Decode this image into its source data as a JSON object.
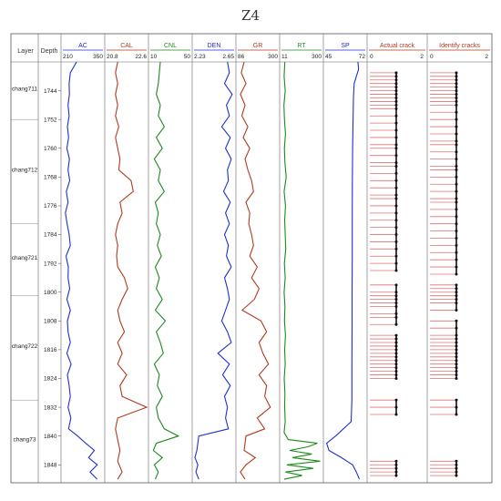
{
  "chart_data": {
    "type": "line",
    "title": "Z4",
    "columns": {
      "layer": "Layer",
      "depth": "Depth"
    },
    "depth_range": [
      1736,
      1853
    ],
    "depth_ticks": [
      1744,
      1752,
      1760,
      1768,
      1776,
      1784,
      1792,
      1800,
      1808,
      1816,
      1824,
      1832,
      1840,
      1848
    ],
    "layers": [
      {
        "name": "chang711",
        "top": 1736,
        "bottom": 1752
      },
      {
        "name": "chang712",
        "top": 1752,
        "bottom": 1781
      },
      {
        "name": "chang721",
        "top": 1781,
        "bottom": 1801
      },
      {
        "name": "chang722",
        "top": 1801,
        "bottom": 1830
      },
      {
        "name": "chang73",
        "top": 1830,
        "bottom": 1853
      }
    ],
    "tracks": [
      {
        "name": "AC",
        "min": "210",
        "max": "350",
        "color": "#1f2fcf",
        "depths": [
          1736,
          1739,
          1742,
          1745,
          1748,
          1751,
          1754,
          1757,
          1760,
          1763,
          1766,
          1769,
          1772,
          1775,
          1778,
          1781,
          1784,
          1787,
          1790,
          1793,
          1796,
          1799,
          1802,
          1805,
          1808,
          1811,
          1814,
          1817,
          1820,
          1823,
          1826,
          1829,
          1832,
          1835,
          1838,
          1840,
          1842,
          1844,
          1846,
          1848,
          1850,
          1852
        ],
        "values": [
          258,
          236,
          232,
          233,
          228,
          232,
          226,
          230,
          224,
          233,
          228,
          234,
          222,
          228,
          219,
          225,
          232,
          236,
          221,
          229,
          228,
          234,
          224,
          236,
          226,
          228,
          236,
          224,
          239,
          226,
          232,
          236,
          228,
          238,
          230,
          262,
          290,
          320,
          300,
          330,
          305,
          330
        ]
      },
      {
        "name": "CAL",
        "min": "20.8",
        "max": "22.6",
        "color": "#b03a1e",
        "depths": [
          1736,
          1739,
          1742,
          1745,
          1748,
          1751,
          1754,
          1757,
          1760,
          1763,
          1766,
          1769,
          1772,
          1775,
          1778,
          1781,
          1784,
          1787,
          1790,
          1793,
          1796,
          1799,
          1802,
          1805,
          1808,
          1811,
          1814,
          1817,
          1820,
          1823,
          1826,
          1829,
          1832,
          1835,
          1838,
          1841,
          1844,
          1847,
          1850,
          1852
        ],
        "values": [
          21.3,
          21.2,
          21.3,
          21.2,
          21.3,
          21.2,
          21.35,
          21.2,
          21.3,
          21.4,
          21.35,
          21.9,
          22.0,
          21.4,
          21.5,
          21.3,
          21.2,
          21.3,
          21.25,
          21.3,
          21.6,
          21.75,
          21.5,
          21.3,
          21.4,
          21.6,
          21.3,
          21.5,
          21.3,
          21.7,
          21.4,
          21.5,
          22.6,
          21.3,
          21.2,
          21.3,
          21.4,
          21.3,
          21.5,
          21.3
        ]
      },
      {
        "name": "CNL",
        "min": "10",
        "max": "50",
        "color": "#1d8a1d",
        "depths": [
          1736,
          1739,
          1742,
          1745,
          1748,
          1751,
          1754,
          1757,
          1760,
          1763,
          1766,
          1769,
          1772,
          1775,
          1778,
          1781,
          1784,
          1787,
          1790,
          1793,
          1796,
          1799,
          1802,
          1805,
          1808,
          1811,
          1814,
          1817,
          1820,
          1823,
          1826,
          1829,
          1832,
          1835,
          1838,
          1840,
          1842,
          1844,
          1846,
          1848,
          1850,
          1852
        ],
        "values": [
          20,
          19,
          18,
          16,
          20,
          18,
          24,
          16,
          22,
          14,
          20,
          18,
          24,
          15,
          18,
          16,
          20,
          17,
          21,
          15,
          19,
          16,
          22,
          15,
          25,
          16,
          20,
          23,
          14,
          19,
          17,
          22,
          16,
          18,
          24,
          38,
          16,
          13,
          22,
          14,
          18,
          15
        ]
      },
      {
        "name": "DEN",
        "min": "2.23",
        "max": "2.65",
        "color": "#1f2fcf",
        "depths": [
          1736,
          1739,
          1742,
          1745,
          1748,
          1751,
          1754,
          1757,
          1760,
          1763,
          1766,
          1769,
          1772,
          1775,
          1778,
          1781,
          1784,
          1787,
          1790,
          1793,
          1796,
          1799,
          1802,
          1805,
          1808,
          1811,
          1814,
          1817,
          1820,
          1823,
          1826,
          1829,
          1832,
          1835,
          1838,
          1840,
          1842,
          1844,
          1846,
          1848,
          1850,
          1852
        ],
        "values": [
          2.58,
          2.6,
          2.55,
          2.63,
          2.57,
          2.6,
          2.52,
          2.61,
          2.56,
          2.62,
          2.58,
          2.59,
          2.54,
          2.61,
          2.56,
          2.6,
          2.55,
          2.59,
          2.57,
          2.62,
          2.55,
          2.58,
          2.6,
          2.56,
          2.52,
          2.58,
          2.62,
          2.48,
          2.6,
          2.53,
          2.61,
          2.55,
          2.58,
          2.56,
          2.59,
          2.28,
          2.27,
          2.26,
          2.24,
          2.27,
          2.25,
          2.28
        ]
      },
      {
        "name": "GR",
        "min": "86",
        "max": "300",
        "color": "#b03a1e",
        "depths": [
          1736,
          1739,
          1742,
          1745,
          1748,
          1751,
          1754,
          1757,
          1760,
          1763,
          1766,
          1769,
          1772,
          1775,
          1778,
          1781,
          1784,
          1787,
          1790,
          1793,
          1796,
          1799,
          1802,
          1805,
          1808,
          1811,
          1814,
          1817,
          1820,
          1823,
          1826,
          1829,
          1832,
          1835,
          1838,
          1840,
          1842,
          1844,
          1846,
          1848,
          1850,
          1852
        ],
        "values": [
          120,
          105,
          130,
          100,
          125,
          108,
          140,
          115,
          150,
          125,
          140,
          160,
          170,
          130,
          150,
          145,
          160,
          170,
          150,
          190,
          160,
          200,
          175,
          110,
          210,
          240,
          200,
          220,
          250,
          200,
          240,
          230,
          260,
          190,
          230,
          130,
          125,
          120,
          180,
          130,
          100,
          125
        ]
      },
      {
        "name": "RT",
        "min": "11",
        "max": "300",
        "color": "#1d8a1d",
        "depths": [
          1736,
          1740,
          1744,
          1748,
          1752,
          1756,
          1760,
          1764,
          1768,
          1772,
          1776,
          1780,
          1784,
          1788,
          1792,
          1796,
          1800,
          1804,
          1808,
          1812,
          1816,
          1820,
          1824,
          1828,
          1832,
          1836,
          1839,
          1841,
          1842,
          1843,
          1844,
          1845,
          1846,
          1847,
          1848,
          1849,
          1850,
          1851,
          1852
        ],
        "values": [
          35,
          30,
          38,
          29,
          33,
          40,
          32,
          36,
          45,
          30,
          40,
          34,
          38,
          42,
          32,
          38,
          30,
          36,
          33,
          40,
          34,
          38,
          31,
          36,
          34,
          38,
          30,
          60,
          270,
          200,
          70,
          230,
          90,
          290,
          50,
          240,
          40,
          160,
          30
        ]
      },
      {
        "name": "SP",
        "min": "45",
        "max": "72",
        "color": "#1f2fcf",
        "depths": [
          1736,
          1738,
          1740,
          1742,
          1746,
          1752,
          1760,
          1770,
          1780,
          1790,
          1800,
          1810,
          1820,
          1830,
          1836,
          1840,
          1842,
          1844,
          1846,
          1848,
          1850,
          1852
        ],
        "values": [
          67,
          67.5,
          66,
          64.5,
          64,
          63.8,
          63.5,
          63.3,
          63.2,
          63.2,
          63.1,
          63.1,
          63,
          63,
          62.5,
          52,
          46,
          47.5,
          56,
          63.5,
          66,
          68
        ]
      }
    ],
    "crack_tracks": [
      {
        "name": "Actual crack",
        "min": "0",
        "max": "2",
        "depths": [
          1739,
          1740,
          1741,
          1742,
          1743,
          1744,
          1745,
          1746,
          1747,
          1748,
          1749,
          1751,
          1753,
          1755,
          1757,
          1759,
          1760,
          1762,
          1764,
          1765,
          1767,
          1769,
          1771,
          1773,
          1774,
          1776,
          1778,
          1780,
          1782,
          1784,
          1786,
          1788,
          1790,
          1792,
          1794,
          1798,
          1800,
          1801,
          1802,
          1803,
          1804,
          1806,
          1807,
          1809,
          1812,
          1813,
          1814,
          1815,
          1816,
          1817,
          1818,
          1819,
          1820,
          1821,
          1822,
          1823,
          1824,
          1830,
          1832,
          1834,
          1847,
          1848,
          1849,
          1850,
          1851
        ]
      },
      {
        "name": "Identify cracks",
        "min": "0",
        "max": "2",
        "depths": [
          1739,
          1740,
          1741,
          1742,
          1743,
          1744,
          1745,
          1746,
          1747,
          1748,
          1750,
          1752,
          1754,
          1756,
          1758,
          1759,
          1761,
          1763,
          1765,
          1766,
          1768,
          1770,
          1772,
          1774,
          1775,
          1777,
          1779,
          1781,
          1783,
          1785,
          1787,
          1789,
          1791,
          1793,
          1795,
          1798,
          1799,
          1800,
          1801,
          1802,
          1803,
          1805,
          1808,
          1810,
          1812,
          1813,
          1814,
          1815,
          1816,
          1817,
          1818,
          1819,
          1820,
          1821,
          1822,
          1823,
          1824,
          1830,
          1832,
          1834,
          1847,
          1848,
          1849,
          1850,
          1851
        ]
      }
    ],
    "grid": true
  }
}
